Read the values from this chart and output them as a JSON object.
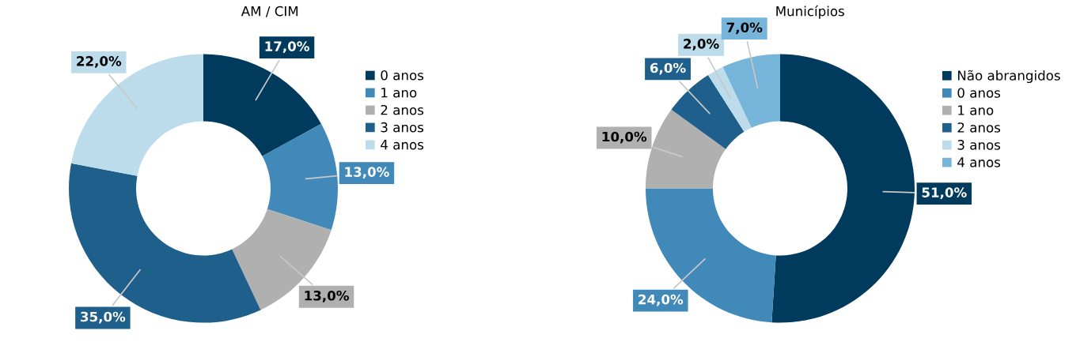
{
  "chart_data": [
    {
      "type": "donut",
      "title": "AM / CIM",
      "categories": [
        "0 anos",
        "1 ano",
        "2 anos",
        "3 anos",
        "4 anos"
      ],
      "values": [
        17,
        13,
        13,
        35,
        22
      ],
      "colors": [
        "#003a5c",
        "#4189b8",
        "#b0b0b0",
        "#1f5f8b",
        "#bcdcec"
      ],
      "value_labels": [
        "17,0%",
        "13,0%",
        "13,0%",
        "35,0%",
        "22,0%"
      ],
      "legend": "right"
    },
    {
      "type": "donut",
      "title": "Municípios",
      "categories": [
        "Não abrangidos",
        "0 anos",
        "1 ano",
        "2 anos",
        "3 anos",
        "4 anos"
      ],
      "values": [
        51,
        24,
        10,
        6,
        2,
        7
      ],
      "colors": [
        "#003a5c",
        "#4189b8",
        "#b0b0b0",
        "#1f5f8b",
        "#bcdcec",
        "#76b4da"
      ],
      "value_labels": [
        "51,0%",
        "24,0%",
        "10,0%",
        "6,0%",
        "2,0%",
        "7,0%"
      ],
      "legend": "right"
    }
  ]
}
